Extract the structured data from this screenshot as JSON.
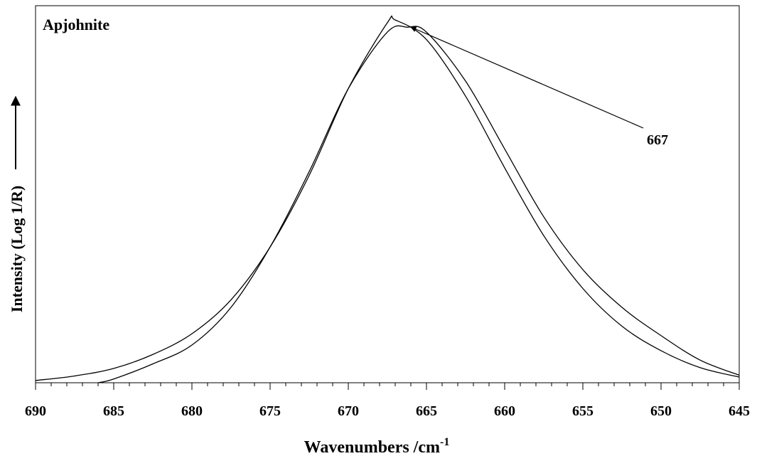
{
  "chart_data": {
    "type": "line",
    "title": "Apjohnite",
    "x_label": "Wavenumbers /cm",
    "x_label_sup": "-1",
    "y_label": "Intensity (Log 1/R)",
    "annotation": "667",
    "xlim": [
      690,
      645
    ],
    "xticks": [
      690,
      685,
      680,
      675,
      670,
      665,
      660,
      655,
      650,
      645
    ],
    "ylim": [
      0,
      1
    ],
    "series": [
      {
        "color": "#000000",
        "x": [
          690,
          687.5,
          685,
          682.5,
          680,
          677.5,
          675,
          672.5,
          670,
          667.5,
          667,
          665,
          662.5,
          660,
          657.5,
          655,
          652.5,
          650,
          647.5,
          645
        ],
        "values": [
          0.006,
          0.018,
          0.038,
          0.075,
          0.13,
          0.22,
          0.36,
          0.55,
          0.78,
          0.955,
          0.962,
          0.91,
          0.76,
          0.57,
          0.39,
          0.25,
          0.15,
          0.085,
          0.04,
          0.015
        ]
      },
      {
        "color": "#000000",
        "x": [
          686,
          685,
          682.5,
          680,
          677.5,
          675,
          672.5,
          670,
          667.5,
          666.2,
          665,
          662.5,
          660,
          657.5,
          655,
          652.5,
          650,
          647.5,
          645
        ],
        "values": [
          0,
          0.01,
          0.05,
          0.1,
          0.2,
          0.36,
          0.56,
          0.78,
          0.93,
          0.943,
          0.93,
          0.8,
          0.62,
          0.44,
          0.3,
          0.2,
          0.125,
          0.06,
          0.02
        ]
      }
    ]
  }
}
